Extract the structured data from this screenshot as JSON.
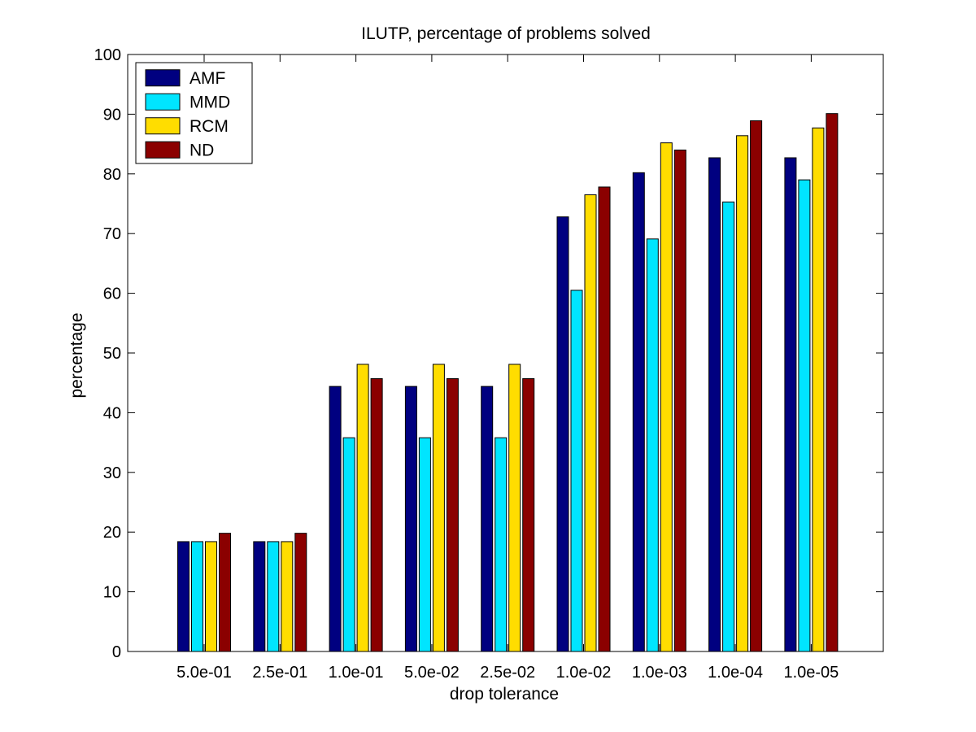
{
  "chart_data": {
    "type": "bar",
    "title": "ILUTP, percentage of problems solved",
    "xlabel": "drop tolerance",
    "ylabel": "percentage",
    "ylim": [
      0,
      100
    ],
    "yticks": [
      0,
      10,
      20,
      30,
      40,
      50,
      60,
      70,
      80,
      90,
      100
    ],
    "grid": false,
    "legend_position": "top-left",
    "categories": [
      "5.0e-01",
      "2.5e-01",
      "1.0e-01",
      "5.0e-02",
      "2.5e-02",
      "1.0e-02",
      "1.0e-03",
      "1.0e-04",
      "1.0e-05"
    ],
    "series": [
      {
        "name": "AMF",
        "color": "#000080",
        "values": [
          18.4,
          18.4,
          44.4,
          44.4,
          44.4,
          72.8,
          80.2,
          82.7,
          82.7
        ]
      },
      {
        "name": "MMD",
        "color": "#00e5ff",
        "values": [
          18.4,
          18.4,
          35.8,
          35.8,
          35.8,
          60.5,
          69.1,
          75.3,
          79.0
        ]
      },
      {
        "name": "RCM",
        "color": "#ffdd00",
        "values": [
          18.4,
          18.4,
          48.1,
          48.1,
          48.1,
          76.5,
          85.2,
          86.4,
          87.7
        ]
      },
      {
        "name": "ND",
        "color": "#8b0000",
        "values": [
          19.8,
          19.8,
          45.7,
          45.7,
          45.7,
          77.8,
          84.0,
          88.9,
          90.1
        ]
      }
    ]
  }
}
